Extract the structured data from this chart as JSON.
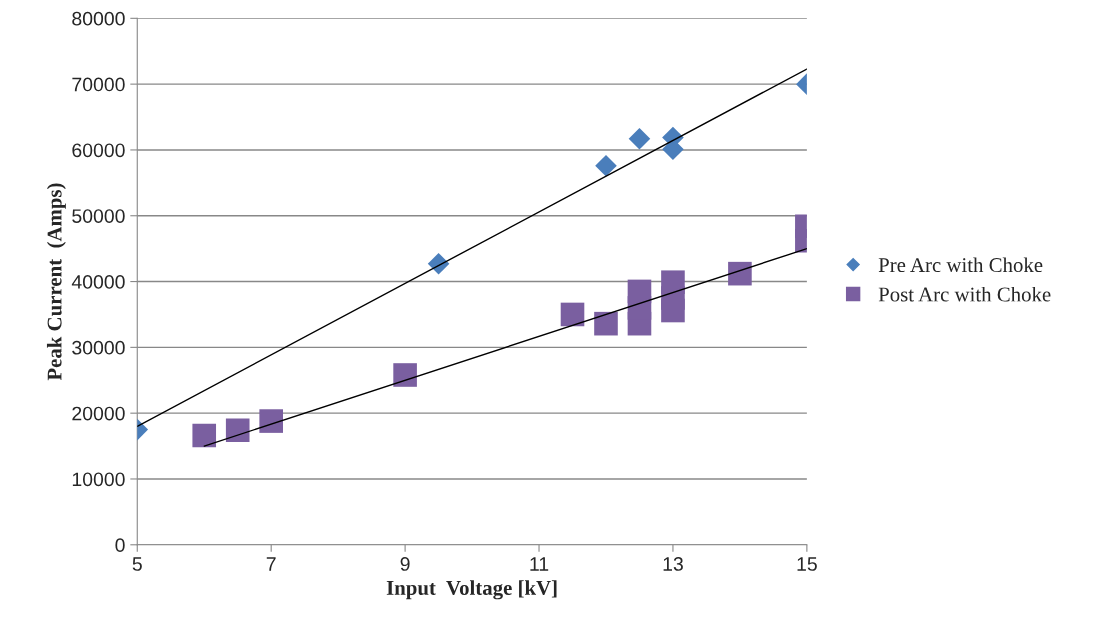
{
  "chart_data": {
    "type": "scatter",
    "xlabel": "Input  Voltage [kV]",
    "ylabel": "Peak Current  (Amps)",
    "xlim": [
      5,
      15
    ],
    "xticks": [
      5,
      7,
      9,
      11,
      13,
      15
    ],
    "ylim": [
      0,
      80000
    ],
    "yticks": [
      0,
      10000,
      20000,
      30000,
      40000,
      50000,
      60000,
      70000,
      80000
    ],
    "grid": "y",
    "legend": "right",
    "series": [
      {
        "name": "Pre Arc with Choke",
        "color": "#4a7ebb",
        "marker": "diamond",
        "x": [
          5,
          9.5,
          12,
          12.5,
          13,
          13,
          15
        ],
        "values": [
          17500,
          42700,
          57600,
          61700,
          61900,
          60100,
          70000
        ]
      },
      {
        "name": "Post Arc with Choke",
        "color": "#7a5fa0",
        "marker": "square",
        "x": [
          6,
          6.5,
          7,
          9,
          11.5,
          12,
          12.5,
          12.5,
          12.5,
          13,
          13,
          13,
          14,
          15,
          15
        ],
        "values": [
          16600,
          17400,
          18800,
          25800,
          35000,
          33600,
          33600,
          36000,
          38500,
          35600,
          37500,
          39900,
          41200,
          46200,
          48400
        ]
      },
      {
        "type": "line",
        "color": "#000000",
        "marker": "none",
        "x": [
          5,
          15
        ],
        "values": [
          18000,
          72300
        ]
      },
      {
        "type": "line",
        "color": "#000000",
        "marker": "none",
        "x": [
          6,
          15
        ],
        "values": [
          15000,
          45000
        ]
      }
    ]
  }
}
